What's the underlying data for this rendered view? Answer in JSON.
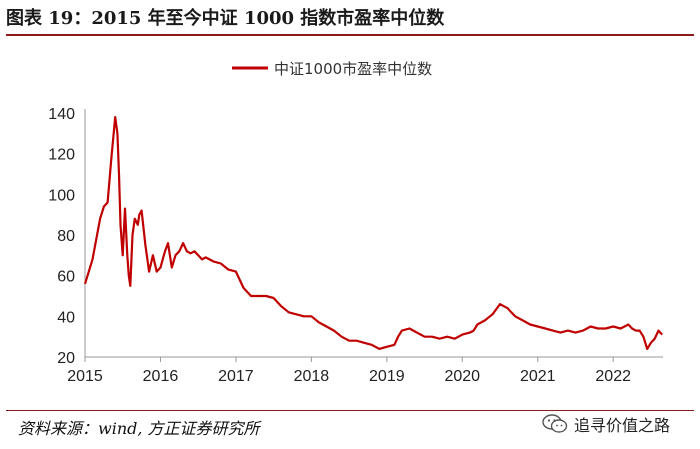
{
  "figure": {
    "title": "图表 19：2015 年至今中证 1000 指数市盈率中位数",
    "source": "资料来源：wind, 方正证券研究所",
    "watermark": "追寻价值之路",
    "watermark_icon": "wechat-icon"
  },
  "chart_data": {
    "type": "line",
    "title": "",
    "xlabel": "",
    "ylabel": "",
    "ylim": [
      20,
      140
    ],
    "y_ticks": [
      20,
      40,
      60,
      80,
      100,
      120,
      140
    ],
    "xlim": [
      2015.0,
      2022.66
    ],
    "x_tick_labels": [
      "2015",
      "2016",
      "2017",
      "2018",
      "2019",
      "2020",
      "2021",
      "2022"
    ],
    "x_tick_values": [
      2015,
      2016,
      2017,
      2018,
      2019,
      2020,
      2021,
      2022
    ],
    "grid": false,
    "legend_position": "top-center",
    "series": [
      {
        "name": "中证1000市盈率中位数",
        "color": "#c00000",
        "x": [
          2015.0,
          2015.05,
          2015.1,
          2015.15,
          2015.2,
          2015.25,
          2015.3,
          2015.35,
          2015.4,
          2015.43,
          2015.45,
          2015.47,
          2015.5,
          2015.53,
          2015.56,
          2015.58,
          2015.6,
          2015.63,
          2015.66,
          2015.7,
          2015.72,
          2015.75,
          2015.8,
          2015.85,
          2015.9,
          2015.95,
          2016.0,
          2016.03,
          2016.06,
          2016.1,
          2016.15,
          2016.2,
          2016.25,
          2016.3,
          2016.35,
          2016.4,
          2016.45,
          2016.5,
          2016.55,
          2016.6,
          2016.7,
          2016.8,
          2016.9,
          2017.0,
          2017.1,
          2017.2,
          2017.3,
          2017.4,
          2017.5,
          2017.6,
          2017.7,
          2017.8,
          2017.9,
          2018.0,
          2018.1,
          2018.2,
          2018.3,
          2018.4,
          2018.5,
          2018.6,
          2018.7,
          2018.8,
          2018.9,
          2019.0,
          2019.1,
          2019.15,
          2019.2,
          2019.3,
          2019.4,
          2019.5,
          2019.6,
          2019.7,
          2019.8,
          2019.9,
          2020.0,
          2020.1,
          2020.15,
          2020.2,
          2020.3,
          2020.4,
          2020.5,
          2020.55,
          2020.6,
          2020.65,
          2020.7,
          2020.8,
          2020.9,
          2021.0,
          2021.1,
          2021.2,
          2021.3,
          2021.4,
          2021.5,
          2021.6,
          2021.7,
          2021.8,
          2021.9,
          2022.0,
          2022.1,
          2022.2,
          2022.25,
          2022.3,
          2022.35,
          2022.4,
          2022.45,
          2022.5,
          2022.55,
          2022.6,
          2022.65
        ],
        "values": [
          56,
          62,
          68,
          78,
          88,
          94,
          96,
          118,
          138,
          130,
          110,
          85,
          70,
          93,
          70,
          60,
          55,
          80,
          88,
          85,
          90,
          92,
          75,
          62,
          70,
          62,
          64,
          68,
          72,
          76,
          64,
          70,
          72,
          76,
          72,
          71,
          72,
          70,
          68,
          69,
          67,
          66,
          63,
          62,
          54,
          50,
          50,
          50,
          49,
          45,
          42,
          41,
          40,
          40,
          37,
          35,
          33,
          30,
          28,
          28,
          27,
          26,
          24,
          25,
          26,
          30,
          33,
          34,
          32,
          30,
          30,
          29,
          30,
          29,
          31,
          32,
          33,
          36,
          38,
          41,
          46,
          45,
          44,
          42,
          40,
          38,
          36,
          35,
          34,
          33,
          32,
          33,
          32,
          33,
          35,
          34,
          34,
          35,
          34,
          36,
          34,
          33,
          33,
          30,
          24,
          27,
          29,
          33,
          31
        ]
      }
    ]
  }
}
